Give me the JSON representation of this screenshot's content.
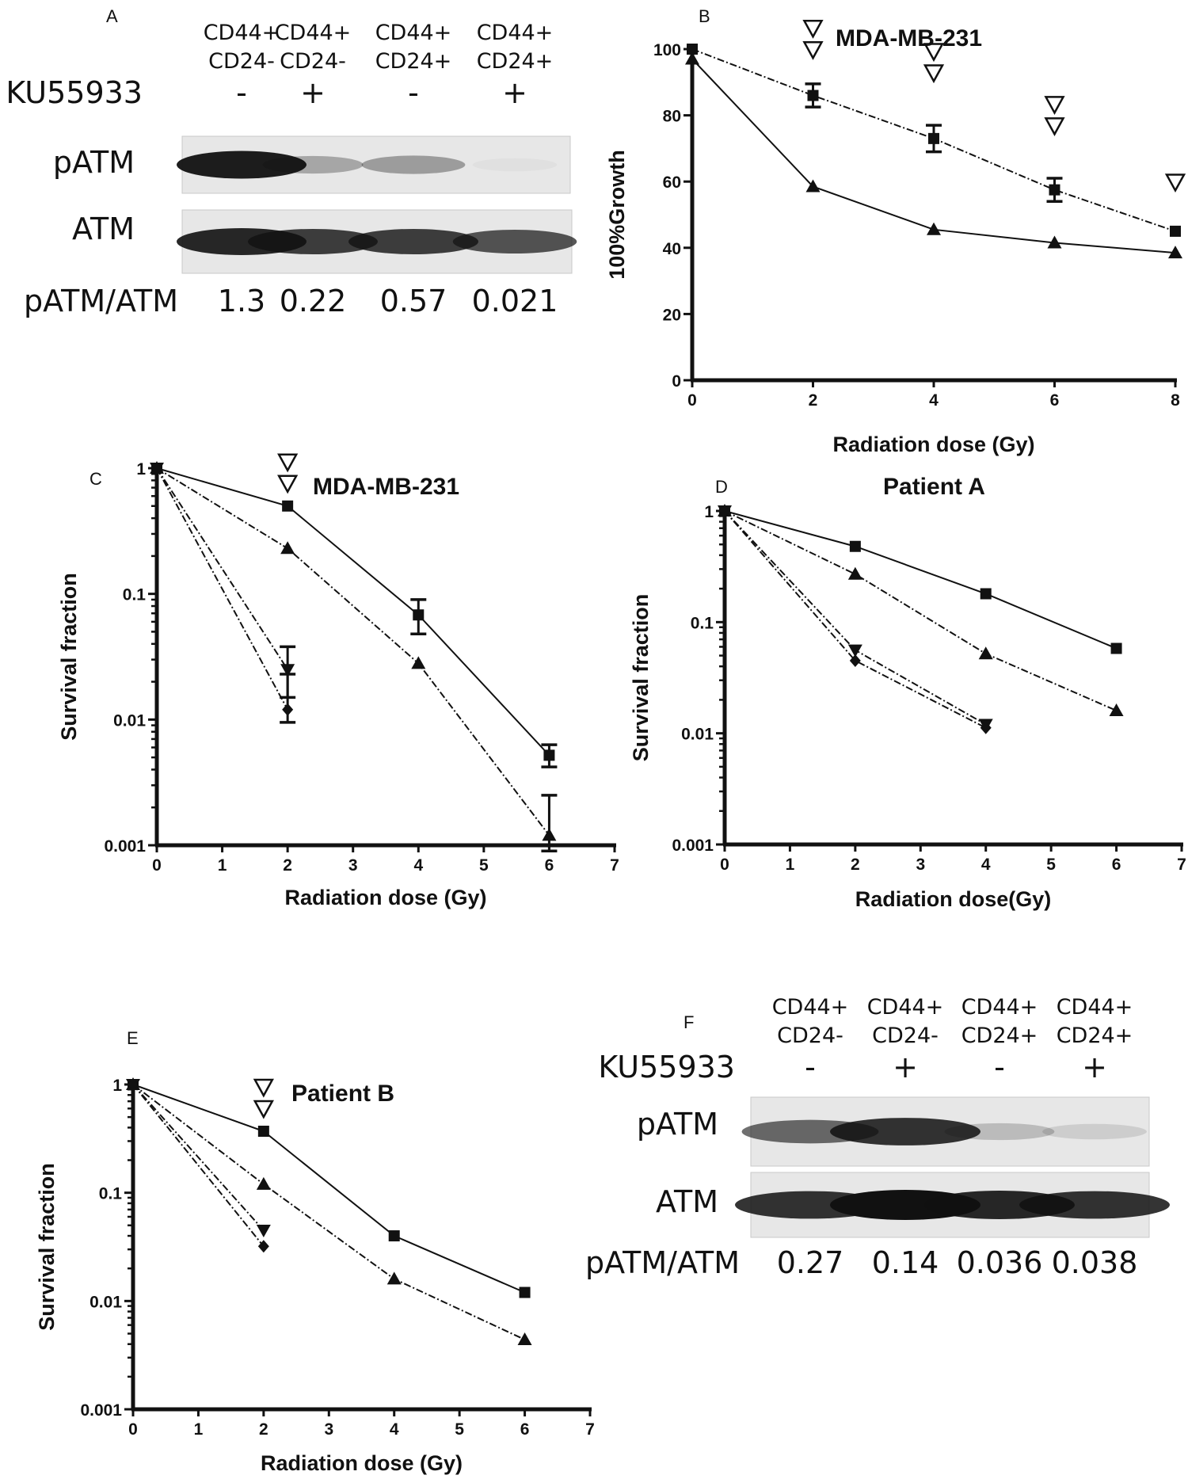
{
  "chart_data": [
    {
      "panel": "A",
      "type": "table",
      "columns": [
        [
          "CD44+",
          "CD24-"
        ],
        [
          "CD44+",
          "CD24-"
        ],
        [
          "CD44+",
          "CD24+"
        ],
        [
          "CD44+",
          "CD24+"
        ]
      ],
      "rows": [
        {
          "label": "KU55933",
          "values": [
            "-",
            "+",
            "-",
            "+"
          ]
        },
        {
          "label": "pATM",
          "band_intensity": [
            0.95,
            0.3,
            0.35,
            0.02
          ]
        },
        {
          "label": "ATM",
          "band_intensity": [
            0.9,
            0.8,
            0.8,
            0.7
          ]
        },
        {
          "label": "pATM/ATM",
          "values": [
            "1.3",
            "0.22",
            "0.57",
            "0.021"
          ]
        }
      ]
    },
    {
      "panel": "B",
      "type": "line",
      "title": "MDA-MB-231",
      "xlabel": "Radiation dose (Gy)",
      "ylabel": "100%Growth",
      "xlim": [
        0,
        8
      ],
      "ylim": [
        0,
        100
      ],
      "xticks": [
        "0",
        "2",
        "4",
        "6",
        "8"
      ],
      "yticks": [
        "0",
        "20",
        "40",
        "60",
        "80",
        "100"
      ],
      "log_y": false,
      "series": [
        {
          "marker": "square",
          "dashed": true,
          "points": [
            [
              0,
              100
            ],
            [
              2,
              86
            ],
            [
              4,
              73
            ],
            [
              6,
              57.5
            ],
            [
              8,
              45
            ]
          ],
          "errors": [
            0,
            3.5,
            4,
            3.5,
            0
          ]
        },
        {
          "marker": "triangle",
          "dashed": false,
          "points": [
            [
              0,
              97
            ],
            [
              2,
              58.5
            ],
            [
              4,
              45.5
            ],
            [
              6,
              41.5
            ],
            [
              8,
              38.5
            ]
          ]
        }
      ],
      "annotations": [
        {
          "x": 2,
          "y": 93,
          "count": 2
        },
        {
          "x": 4,
          "y": 86,
          "count": 2
        },
        {
          "x": 6,
          "y": 70,
          "count": 2
        },
        {
          "x": 8,
          "y": 53,
          "count": 1
        }
      ]
    },
    {
      "panel": "C",
      "type": "line",
      "title": "MDA-MB-231",
      "xlabel": "Radiation dose (Gy)",
      "ylabel": "Survival fraction",
      "xlim": [
        0,
        7
      ],
      "ylim": [
        0.001,
        1
      ],
      "xticks": [
        "0",
        "1",
        "2",
        "3",
        "4",
        "5",
        "6",
        "7"
      ],
      "yticks": [
        "0.001",
        "0.01",
        "0.1",
        "1"
      ],
      "log_y": true,
      "series": [
        {
          "marker": "square",
          "dashed": false,
          "points": [
            [
              0,
              1
            ],
            [
              2,
              0.5
            ],
            [
              4,
              0.068
            ],
            [
              6,
              0.0052
            ]
          ],
          "errors": [
            null,
            null,
            [
              0.048,
              0.09
            ],
            [
              0.0042,
              0.0063
            ]
          ]
        },
        {
          "marker": "triangle",
          "dashed": true,
          "points": [
            [
              0,
              1
            ],
            [
              2,
              0.23
            ],
            [
              4,
              0.028
            ],
            [
              6,
              0.0012
            ]
          ],
          "errors": [
            null,
            null,
            null,
            [
              0.0009,
              0.0025
            ]
          ]
        },
        {
          "marker": "triangle-down",
          "dashed": true,
          "points": [
            [
              0,
              1
            ],
            [
              2,
              0.025
            ]
          ],
          "errors": [
            null,
            [
              0.015,
              0.038
            ]
          ]
        },
        {
          "marker": "diamond",
          "dashed": true,
          "points": [
            [
              0,
              1
            ],
            [
              2,
              0.012
            ]
          ],
          "errors": [
            null,
            [
              0.0095,
              0.023
            ]
          ]
        }
      ],
      "annotations": [
        {
          "x": 2,
          "y": 0.5,
          "count": 2
        }
      ]
    },
    {
      "panel": "D",
      "type": "line",
      "title": "Patient A",
      "xlabel": "Radiation dose(Gy)",
      "ylabel": "Survival fraction",
      "xlim": [
        0,
        7
      ],
      "ylim": [
        0.001,
        1
      ],
      "xticks": [
        "0",
        "1",
        "2",
        "3",
        "4",
        "5",
        "6",
        "7"
      ],
      "yticks": [
        "0.001",
        "0.01",
        "0.1",
        "1"
      ],
      "log_y": true,
      "series": [
        {
          "marker": "square",
          "dashed": false,
          "points": [
            [
              0,
              1
            ],
            [
              2,
              0.48
            ],
            [
              4,
              0.18
            ],
            [
              6,
              0.058
            ]
          ]
        },
        {
          "marker": "triangle",
          "dashed": true,
          "points": [
            [
              0,
              1
            ],
            [
              2,
              0.27
            ],
            [
              4,
              0.052
            ],
            [
              6,
              0.016
            ]
          ]
        },
        {
          "marker": "triangle-down",
          "dashed": true,
          "points": [
            [
              0,
              1
            ],
            [
              2,
              0.056
            ],
            [
              4,
              0.012
            ]
          ]
        },
        {
          "marker": "diamond",
          "dashed": true,
          "points": [
            [
              0,
              1
            ],
            [
              2,
              0.045
            ],
            [
              4,
              0.0112
            ]
          ]
        }
      ],
      "annotations": []
    },
    {
      "panel": "E",
      "type": "line",
      "title": "Patient B",
      "xlabel": "Radiation dose (Gy)",
      "ylabel": "Survival fraction",
      "xlim": [
        0,
        7
      ],
      "ylim": [
        0.001,
        1
      ],
      "xticks": [
        "0",
        "1",
        "2",
        "3",
        "4",
        "5",
        "6",
        "7"
      ],
      "yticks": [
        "0.001",
        "0.01",
        "0.1",
        "1"
      ],
      "log_y": true,
      "series": [
        {
          "marker": "square",
          "dashed": false,
          "points": [
            [
              0,
              1
            ],
            [
              2,
              0.37
            ],
            [
              4,
              0.04
            ],
            [
              6,
              0.012
            ]
          ]
        },
        {
          "marker": "triangle",
          "dashed": true,
          "points": [
            [
              0,
              1
            ],
            [
              2,
              0.12
            ],
            [
              4,
              0.016
            ],
            [
              6,
              0.0044
            ]
          ]
        },
        {
          "marker": "triangle-down",
          "dashed": true,
          "points": [
            [
              0,
              1
            ],
            [
              2,
              0.045
            ]
          ]
        },
        {
          "marker": "diamond",
          "dashed": true,
          "points": [
            [
              0,
              1
            ],
            [
              2,
              0.032
            ]
          ]
        }
      ],
      "annotations": [
        {
          "x": 2,
          "y": 0.37,
          "count": 2
        }
      ]
    },
    {
      "panel": "F",
      "type": "table",
      "columns": [
        [
          "CD44+",
          "CD24-"
        ],
        [
          "CD44+",
          "CD24-"
        ],
        [
          "CD44+",
          "CD24+"
        ],
        [
          "CD44+",
          "CD24+"
        ]
      ],
      "rows": [
        {
          "label": "KU55933",
          "values": [
            "-",
            "+",
            "-",
            "+"
          ]
        },
        {
          "label": "pATM",
          "band_intensity": [
            0.6,
            0.85,
            0.2,
            0.12
          ]
        },
        {
          "label": "ATM",
          "band_intensity": [
            0.85,
            1.0,
            0.9,
            0.85
          ]
        },
        {
          "label": "pATM/ATM",
          "values": [
            "0.27",
            "0.14",
            "0.036",
            "0.038"
          ]
        }
      ]
    }
  ]
}
